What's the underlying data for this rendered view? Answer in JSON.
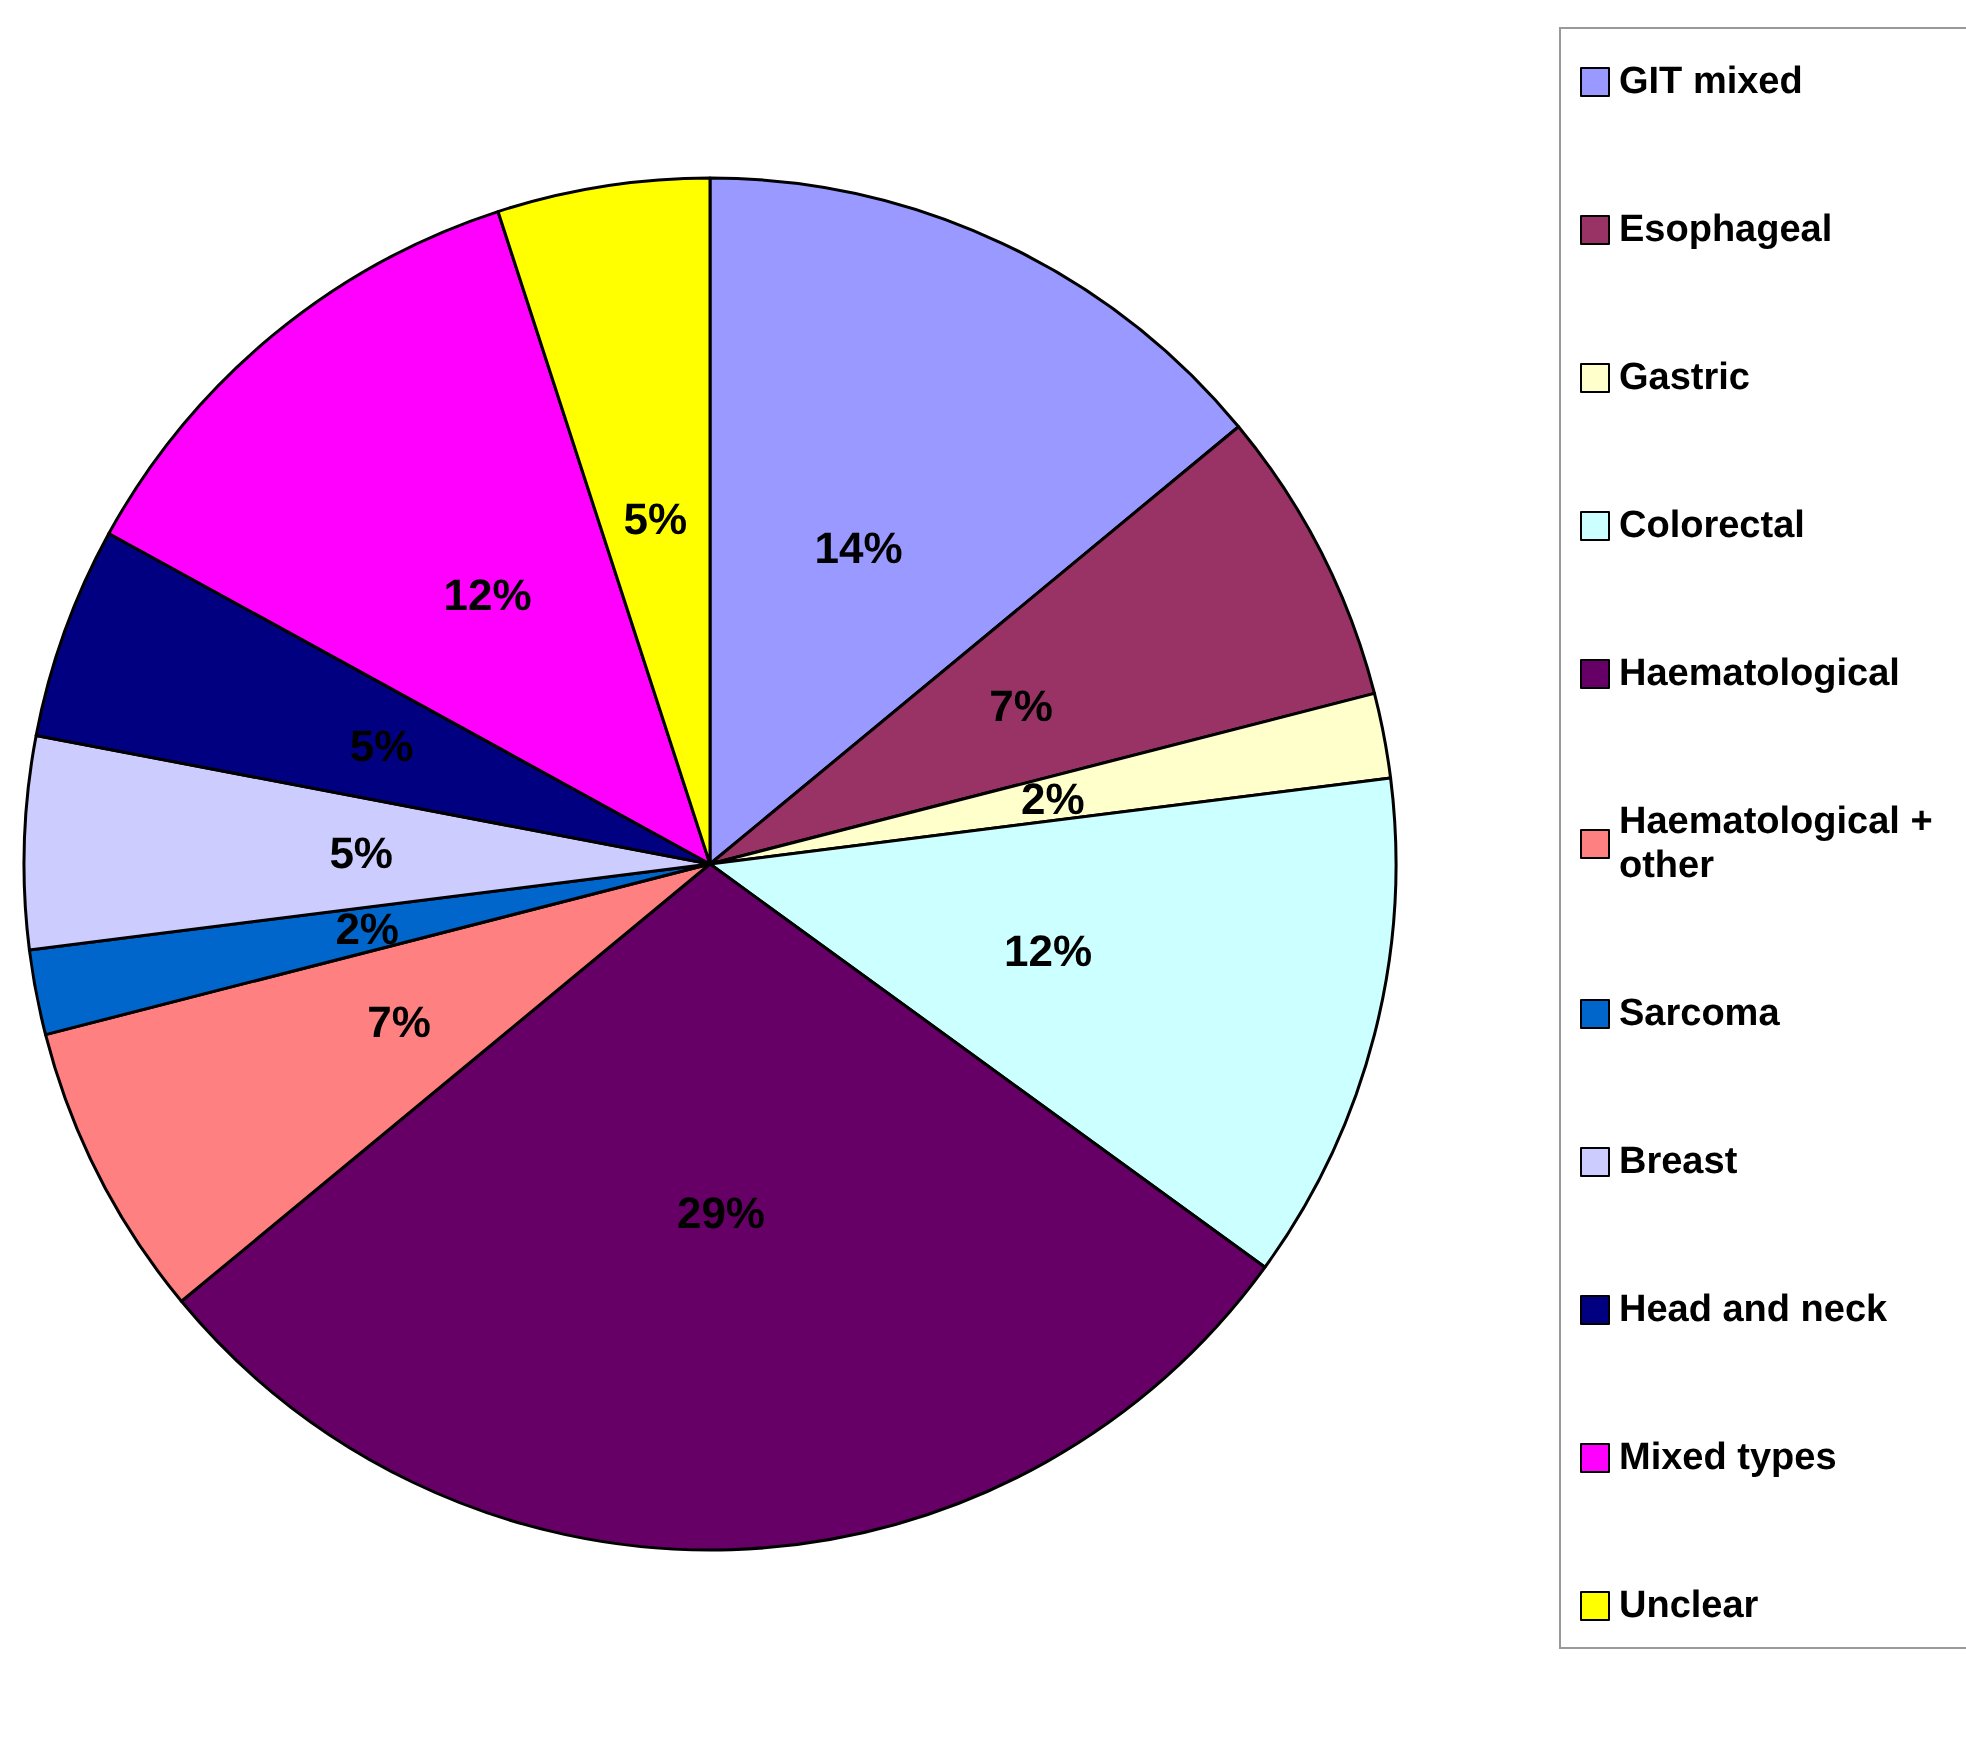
{
  "chart_data": {
    "type": "pie",
    "categories": [
      "GIT mixed",
      "Esophageal",
      "Gastric",
      "Colorectal",
      "Haematological",
      "Haematological + other",
      "Sarcoma",
      "Breast",
      "Head and neck",
      "Mixed types",
      "Unclear"
    ],
    "values": [
      14,
      7,
      2,
      12,
      29,
      7,
      2,
      5,
      5,
      12,
      5
    ],
    "value_labels": [
      "14%",
      "7%",
      "2%",
      "12%",
      "29%",
      "7%",
      "2%",
      "5%",
      "5%",
      "12%",
      "5%"
    ],
    "colors": [
      "#9999ff",
      "#993366",
      "#ffffcc",
      "#ccffff",
      "#660066",
      "#ff8080",
      "#0066cc",
      "#ccccff",
      "#000080",
      "#ff00ff",
      "#ffff00"
    ],
    "legend": "right"
  }
}
